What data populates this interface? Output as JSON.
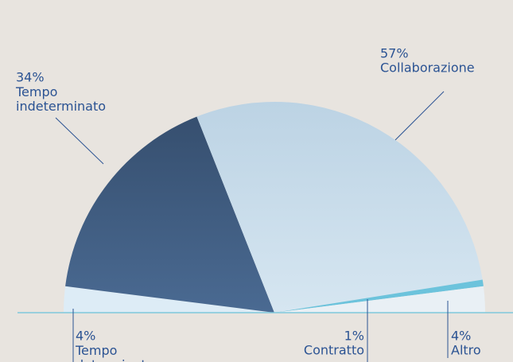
{
  "chart_data": {
    "type": "pie",
    "semicircle": true,
    "categories": [
      "Tempo determinato",
      "Tempo indeterminato",
      "Collaborazione",
      "Contratto",
      "Altro"
    ],
    "values": [
      4,
      34,
      57,
      1,
      4
    ],
    "value_labels": [
      "4%",
      "34%",
      "57%",
      "1%",
      "4%"
    ],
    "colors": [
      "#ddecf6",
      "#3f5a7d",
      "#c4d9e8",
      "#6cc3dc",
      "#e9f0f5"
    ]
  }
}
